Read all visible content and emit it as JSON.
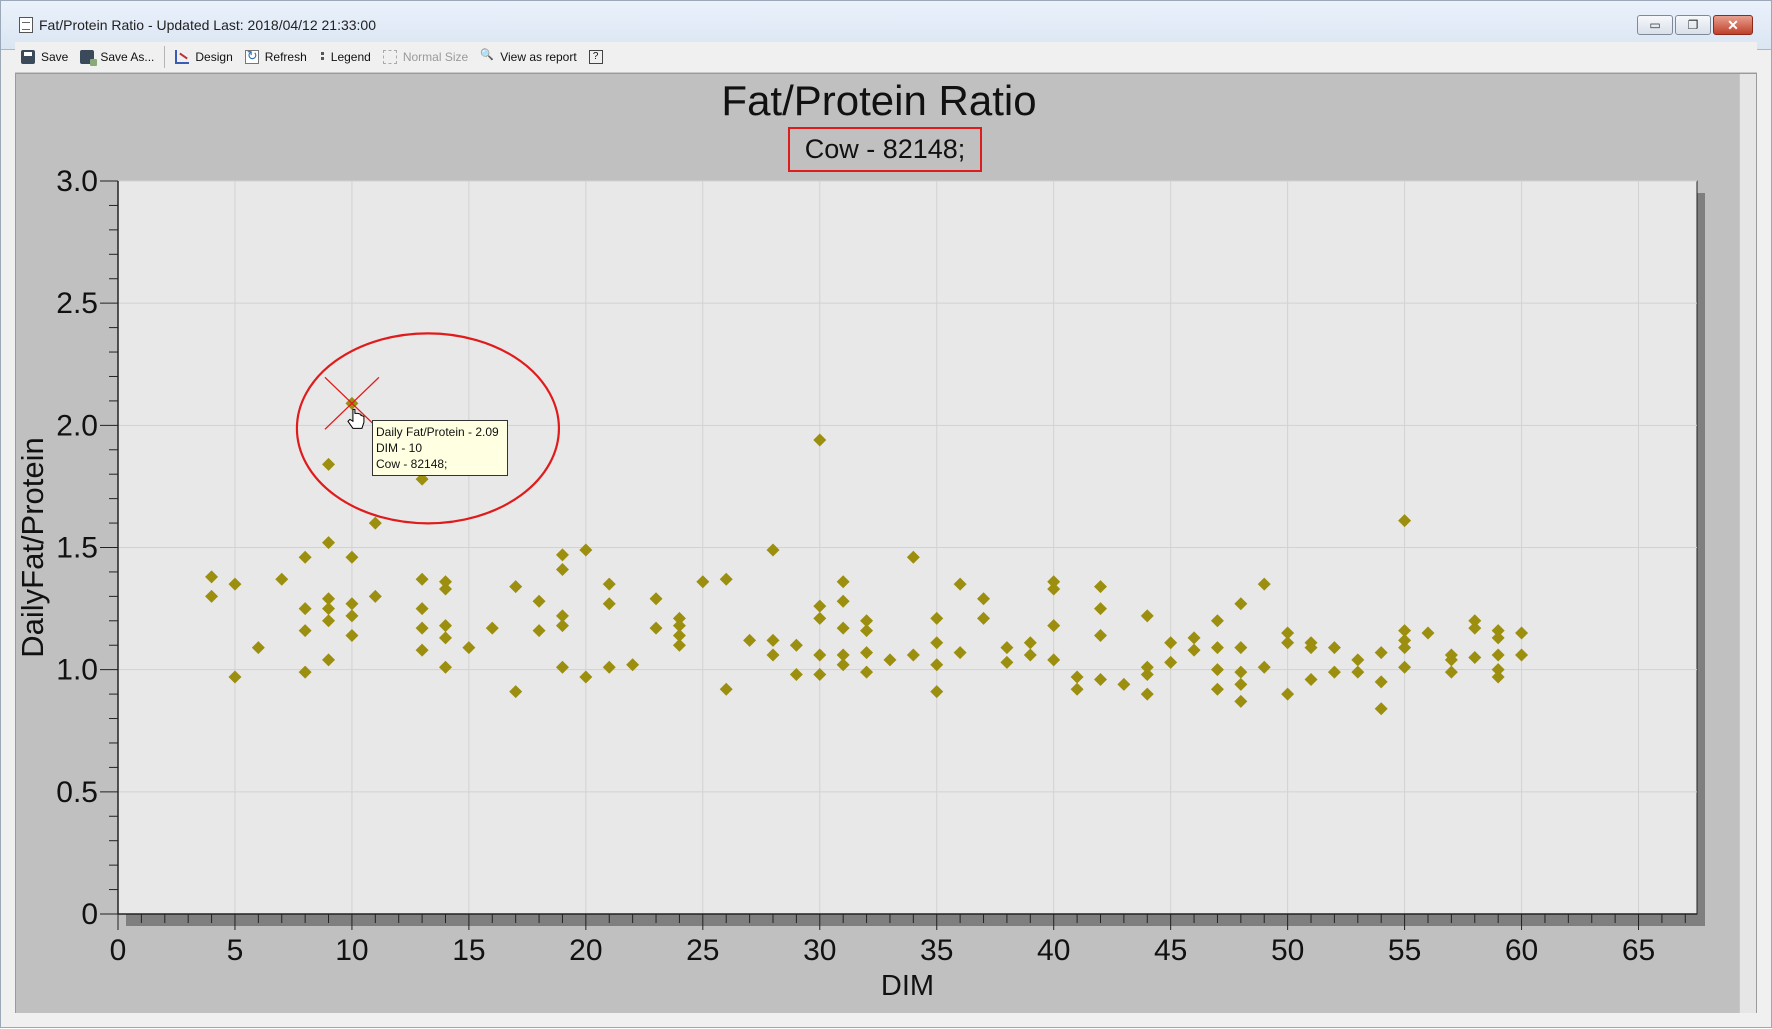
{
  "window": {
    "title": "Fat/Protein Ratio - Updated Last: 2018/04/12 21:33:00",
    "controls": {
      "minimize": "▭",
      "restore": "❐",
      "close": "✕"
    }
  },
  "toolbar": {
    "save": "Save",
    "save_as": "Save As...",
    "design": "Design",
    "refresh": "Refresh",
    "legend": "Legend",
    "normal_size": "Normal Size",
    "view_as_report": "View as report",
    "help": "?"
  },
  "tooltip": {
    "line1": "Daily Fat/Protein - 2.09",
    "line2": "DIM - 10",
    "line3": "Cow - 82148;"
  },
  "colors": {
    "marker": "#9c8f10",
    "highlight": "#e01b1b",
    "plot_bg": "#e8e8e8",
    "panel_bg": "#c0c0c0"
  },
  "chart_data": {
    "type": "scatter",
    "title": "Fat/Protein Ratio",
    "subtitle": "Cow - 82148;",
    "xlabel": "DIM",
    "ylabel": "DailyFat/Protein",
    "xlim": [
      0,
      67.5
    ],
    "ylim": [
      0,
      3.0
    ],
    "xticks": [
      "0",
      "5",
      "10",
      "15",
      "20",
      "25",
      "30",
      "35",
      "40",
      "45",
      "50",
      "55",
      "60",
      "65"
    ],
    "yticks": [
      "0",
      "0.5",
      "1.0",
      "1.5",
      "2.0",
      "2.5",
      "3.0"
    ],
    "grid": true,
    "highlighted_point": {
      "x": 10,
      "y": 2.09
    },
    "points": [
      [
        4,
        1.38
      ],
      [
        4,
        1.3
      ],
      [
        5,
        1.35
      ],
      [
        5,
        0.97
      ],
      [
        6,
        1.09
      ],
      [
        7,
        1.37
      ],
      [
        8,
        1.46
      ],
      [
        8,
        1.25
      ],
      [
        8,
        1.16
      ],
      [
        8,
        0.99
      ],
      [
        9,
        1.84
      ],
      [
        9,
        1.52
      ],
      [
        9,
        1.29
      ],
      [
        9,
        1.25
      ],
      [
        9,
        1.2
      ],
      [
        9,
        1.04
      ],
      [
        10,
        2.09
      ],
      [
        10,
        1.46
      ],
      [
        10,
        1.27
      ],
      [
        10,
        1.22
      ],
      [
        10,
        1.14
      ],
      [
        11,
        1.6
      ],
      [
        11,
        1.3
      ],
      [
        13,
        1.78
      ],
      [
        13,
        1.37
      ],
      [
        13,
        1.25
      ],
      [
        13,
        1.17
      ],
      [
        13,
        1.08
      ],
      [
        14,
        1.36
      ],
      [
        14,
        1.33
      ],
      [
        14,
        1.18
      ],
      [
        14,
        1.13
      ],
      [
        14,
        1.01
      ],
      [
        15,
        1.09
      ],
      [
        16,
        1.17
      ],
      [
        17,
        1.34
      ],
      [
        17,
        0.91
      ],
      [
        18,
        1.28
      ],
      [
        18,
        1.16
      ],
      [
        19,
        1.47
      ],
      [
        19,
        1.41
      ],
      [
        19,
        1.22
      ],
      [
        19,
        1.18
      ],
      [
        19,
        1.01
      ],
      [
        20,
        1.49
      ],
      [
        20,
        0.97
      ],
      [
        21,
        1.35
      ],
      [
        21,
        1.27
      ],
      [
        21,
        1.01
      ],
      [
        22,
        1.02
      ],
      [
        23,
        1.29
      ],
      [
        23,
        1.17
      ],
      [
        24,
        1.21
      ],
      [
        24,
        1.18
      ],
      [
        24,
        1.14
      ],
      [
        24,
        1.1
      ],
      [
        25,
        1.36
      ],
      [
        26,
        1.37
      ],
      [
        26,
        0.92
      ],
      [
        27,
        1.12
      ],
      [
        28,
        1.49
      ],
      [
        28,
        1.12
      ],
      [
        28,
        1.06
      ],
      [
        29,
        1.1
      ],
      [
        29,
        0.98
      ],
      [
        30,
        1.94
      ],
      [
        30,
        1.26
      ],
      [
        30,
        1.21
      ],
      [
        30,
        1.06
      ],
      [
        30,
        0.98
      ],
      [
        31,
        1.36
      ],
      [
        31,
        1.28
      ],
      [
        31,
        1.17
      ],
      [
        31,
        1.06
      ],
      [
        31,
        1.02
      ],
      [
        32,
        1.2
      ],
      [
        32,
        1.16
      ],
      [
        32,
        1.07
      ],
      [
        32,
        0.99
      ],
      [
        33,
        1.04
      ],
      [
        34,
        1.46
      ],
      [
        34,
        1.06
      ],
      [
        35,
        1.21
      ],
      [
        35,
        1.11
      ],
      [
        35,
        1.02
      ],
      [
        35,
        0.91
      ],
      [
        36,
        1.35
      ],
      [
        36,
        1.07
      ],
      [
        37,
        1.29
      ],
      [
        37,
        1.21
      ],
      [
        38,
        1.09
      ],
      [
        38,
        1.03
      ],
      [
        39,
        1.11
      ],
      [
        39,
        1.06
      ],
      [
        40,
        1.36
      ],
      [
        40,
        1.33
      ],
      [
        40,
        1.18
      ],
      [
        40,
        1.04
      ],
      [
        41,
        0.97
      ],
      [
        41,
        0.92
      ],
      [
        42,
        1.34
      ],
      [
        42,
        1.25
      ],
      [
        42,
        1.14
      ],
      [
        42,
        0.96
      ],
      [
        43,
        0.94
      ],
      [
        44,
        1.22
      ],
      [
        44,
        1.01
      ],
      [
        44,
        0.98
      ],
      [
        44,
        0.9
      ],
      [
        45,
        1.11
      ],
      [
        45,
        1.03
      ],
      [
        46,
        1.13
      ],
      [
        46,
        1.08
      ],
      [
        47,
        1.2
      ],
      [
        47,
        1.09
      ],
      [
        47,
        1.0
      ],
      [
        47,
        0.92
      ],
      [
        48,
        1.27
      ],
      [
        48,
        1.09
      ],
      [
        48,
        0.99
      ],
      [
        48,
        0.94
      ],
      [
        48,
        0.87
      ],
      [
        49,
        1.35
      ],
      [
        49,
        1.01
      ],
      [
        50,
        1.15
      ],
      [
        50,
        1.11
      ],
      [
        50,
        0.9
      ],
      [
        51,
        1.11
      ],
      [
        51,
        1.09
      ],
      [
        51,
        0.96
      ],
      [
        52,
        1.09
      ],
      [
        52,
        0.99
      ],
      [
        53,
        1.04
      ],
      [
        53,
        0.99
      ],
      [
        54,
        1.07
      ],
      [
        54,
        0.95
      ],
      [
        54,
        0.84
      ],
      [
        55,
        1.61
      ],
      [
        55,
        1.16
      ],
      [
        55,
        1.12
      ],
      [
        55,
        1.09
      ],
      [
        55,
        1.01
      ],
      [
        56,
        1.15
      ],
      [
        57,
        1.06
      ],
      [
        57,
        1.04
      ],
      [
        57,
        0.99
      ],
      [
        58,
        1.2
      ],
      [
        58,
        1.17
      ],
      [
        58,
        1.05
      ],
      [
        59,
        1.16
      ],
      [
        59,
        1.13
      ],
      [
        59,
        1.06
      ],
      [
        59,
        1.0
      ],
      [
        59,
        0.97
      ],
      [
        60,
        1.15
      ],
      [
        60,
        1.06
      ]
    ]
  }
}
